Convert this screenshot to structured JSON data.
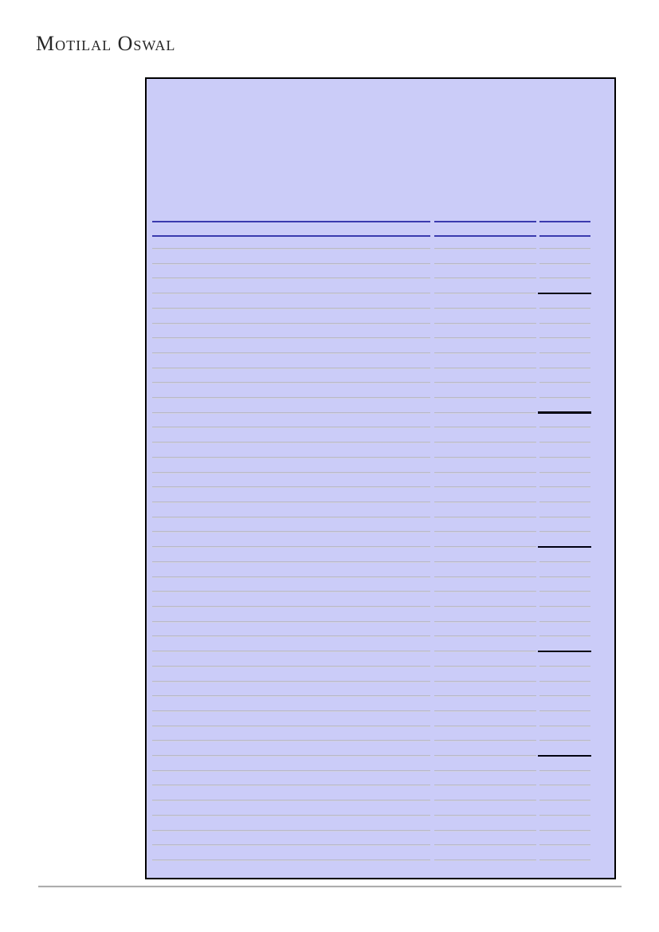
{
  "brand": {
    "logo_text": "Motilal Oswal",
    "text_color": "#262626"
  },
  "financial_table_panel": {
    "background_color": "#cbccf8",
    "border_color": "#000000",
    "header_rule_color": "#3a3aae",
    "row_rule_color_top": "#acacbb",
    "row_rule_color_bottom": "#dcdcee",
    "emphasis_rule_color": "#000010",
    "header_rule_count": 2,
    "column_count": 3,
    "row_count": 42,
    "emphasis_row_indices": [
      3,
      11,
      20,
      27,
      34
    ]
  },
  "footer": {
    "rule_color": "#979797"
  }
}
